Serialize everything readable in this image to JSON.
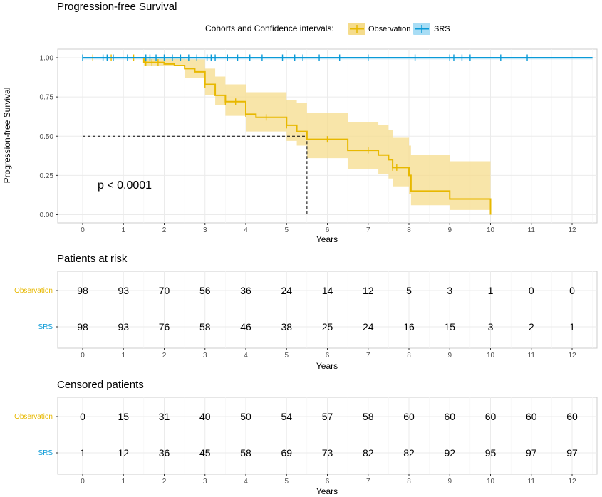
{
  "colors": {
    "observation": "#E7B800",
    "observation_ci": "#F5DC8C",
    "srs": "#0A9AD7",
    "srs_ci": "#A8DDF5",
    "panel_border": "#cccccc",
    "grid": "#ebebeb",
    "tick": "#4d4d4d"
  },
  "chart_data": [
    {
      "type": "line",
      "subtype": "kaplan-meier",
      "title": "Progression-free Survival",
      "xlabel": "Years",
      "ylabel": "Progression-free Survival",
      "xlim": [
        0,
        12.5
      ],
      "ylim": [
        0,
        1
      ],
      "xticks": [
        0,
        1,
        2,
        3,
        4,
        5,
        6,
        7,
        8,
        9,
        10,
        11,
        12
      ],
      "yticks": [
        0,
        0.25,
        0.5,
        0.75,
        1.0
      ],
      "ytick_labels": [
        "0.00",
        "0.25",
        "0.50",
        "0.75",
        "1.00"
      ],
      "grid": true,
      "legend": {
        "position": "top",
        "title": "Cohorts and Confidence intervals:",
        "items": [
          "Observation",
          "SRS"
        ]
      },
      "annotation": "p < 0.0001",
      "median_line": {
        "x": 5.5,
        "y": 0.5
      },
      "series": [
        {
          "name": "Observation",
          "color_key": "observation",
          "steps": [
            [
              0,
              1.0
            ],
            [
              1.5,
              0.97
            ],
            [
              2.0,
              0.96
            ],
            [
              2.25,
              0.95
            ],
            [
              2.5,
              0.93
            ],
            [
              2.75,
              0.91
            ],
            [
              3.0,
              0.83
            ],
            [
              3.25,
              0.76
            ],
            [
              3.5,
              0.72
            ],
            [
              4.0,
              0.64
            ],
            [
              4.25,
              0.62
            ],
            [
              5.0,
              0.57
            ],
            [
              5.25,
              0.53
            ],
            [
              5.5,
              0.48
            ],
            [
              6.5,
              0.41
            ],
            [
              7.0,
              0.41
            ],
            [
              7.25,
              0.38
            ],
            [
              7.5,
              0.35
            ],
            [
              7.6,
              0.3
            ],
            [
              8.0,
              0.25
            ],
            [
              8.05,
              0.15
            ],
            [
              9.0,
              0.1
            ],
            [
              10.0,
              0.0
            ]
          ],
          "end_x": 10.0,
          "ci_upper": [
            [
              0,
              1.0
            ],
            [
              1.5,
              1.0
            ],
            [
              2.5,
              0.99
            ],
            [
              3.0,
              0.93
            ],
            [
              3.25,
              0.88
            ],
            [
              3.5,
              0.83
            ],
            [
              4.0,
              0.78
            ],
            [
              5.0,
              0.73
            ],
            [
              5.25,
              0.71
            ],
            [
              5.5,
              0.65
            ],
            [
              6.5,
              0.59
            ],
            [
              7.25,
              0.57
            ],
            [
              7.5,
              0.54
            ],
            [
              7.6,
              0.49
            ],
            [
              8.0,
              0.44
            ],
            [
              8.05,
              0.38
            ],
            [
              9.0,
              0.34
            ],
            [
              10.0,
              0.32
            ]
          ],
          "ci_lower": [
            [
              0,
              1.0
            ],
            [
              1.5,
              0.95
            ],
            [
              2.5,
              0.87
            ],
            [
              3.0,
              0.76
            ],
            [
              3.25,
              0.7
            ],
            [
              3.5,
              0.63
            ],
            [
              4.0,
              0.53
            ],
            [
              5.0,
              0.47
            ],
            [
              5.25,
              0.44
            ],
            [
              5.5,
              0.36
            ],
            [
              6.5,
              0.29
            ],
            [
              7.25,
              0.26
            ],
            [
              7.5,
              0.23
            ],
            [
              7.6,
              0.18
            ],
            [
              8.0,
              0.13
            ],
            [
              8.05,
              0.06
            ],
            [
              9.0,
              0.03
            ],
            [
              10.0,
              0.0
            ]
          ],
          "censor": [
            [
              0.25,
              1.0
            ],
            [
              0.7,
              1.0
            ],
            [
              1.25,
              1.0
            ],
            [
              1.55,
              0.97
            ],
            [
              1.7,
              0.97
            ],
            [
              1.85,
              0.97
            ],
            [
              3.0,
              0.83
            ],
            [
              3.5,
              0.72
            ],
            [
              3.75,
              0.72
            ],
            [
              4.0,
              0.64
            ],
            [
              4.5,
              0.62
            ],
            [
              5.0,
              0.57
            ],
            [
              6.0,
              0.48
            ],
            [
              7.0,
              0.41
            ],
            [
              7.6,
              0.3
            ],
            [
              7.7,
              0.3
            ]
          ]
        },
        {
          "name": "SRS",
          "color_key": "srs",
          "steps": [
            [
              0,
              1.0
            ]
          ],
          "end_x": 12.5,
          "ci_upper": [
            [
              0,
              1.0
            ]
          ],
          "ci_lower": [
            [
              0,
              0.99
            ]
          ],
          "censor": [
            [
              0,
              1.0
            ],
            [
              0.5,
              1.0
            ],
            [
              0.6,
              1.0
            ],
            [
              0.75,
              1.0
            ],
            [
              1.1,
              1.0
            ],
            [
              1.55,
              1.0
            ],
            [
              1.65,
              1.0
            ],
            [
              1.8,
              1.0
            ],
            [
              2.0,
              1.0
            ],
            [
              2.2,
              1.0
            ],
            [
              2.4,
              1.0
            ],
            [
              2.6,
              1.0
            ],
            [
              2.8,
              1.0
            ],
            [
              3.05,
              1.0
            ],
            [
              3.15,
              1.0
            ],
            [
              3.25,
              1.0
            ],
            [
              3.55,
              1.0
            ],
            [
              3.8,
              1.0
            ],
            [
              4.1,
              1.0
            ],
            [
              4.4,
              1.0
            ],
            [
              4.9,
              1.0
            ],
            [
              5.2,
              1.0
            ],
            [
              5.4,
              1.0
            ],
            [
              5.8,
              1.0
            ],
            [
              6.3,
              1.0
            ],
            [
              7.0,
              1.0
            ],
            [
              8.15,
              1.0
            ],
            [
              9.0,
              1.0
            ],
            [
              9.1,
              1.0
            ],
            [
              9.3,
              1.0
            ],
            [
              9.5,
              1.0
            ],
            [
              10.25,
              1.0
            ],
            [
              10.9,
              1.0
            ]
          ]
        }
      ]
    },
    {
      "type": "table",
      "title": "Patients at risk",
      "xlabel": "Years",
      "xticks": [
        0,
        1,
        2,
        3,
        4,
        5,
        6,
        7,
        8,
        9,
        10,
        11,
        12
      ],
      "rows": [
        {
          "name": "Observation",
          "color_key": "observation",
          "values": [
            98,
            93,
            70,
            56,
            36,
            24,
            14,
            12,
            5,
            3,
            1,
            0,
            0
          ]
        },
        {
          "name": "SRS",
          "color_key": "srs",
          "values": [
            98,
            93,
            76,
            58,
            46,
            38,
            25,
            24,
            16,
            15,
            3,
            2,
            1
          ]
        }
      ]
    },
    {
      "type": "table",
      "title": "Censored patients",
      "xlabel": "Years",
      "xticks": [
        0,
        1,
        2,
        3,
        4,
        5,
        6,
        7,
        8,
        9,
        10,
        11,
        12
      ],
      "rows": [
        {
          "name": "Observation",
          "color_key": "observation",
          "values": [
            0,
            15,
            31,
            40,
            50,
            54,
            57,
            58,
            60,
            60,
            60,
            60,
            60
          ]
        },
        {
          "name": "SRS",
          "color_key": "srs",
          "values": [
            1,
            12,
            36,
            45,
            58,
            69,
            73,
            82,
            82,
            92,
            95,
            97,
            97
          ]
        }
      ]
    }
  ]
}
